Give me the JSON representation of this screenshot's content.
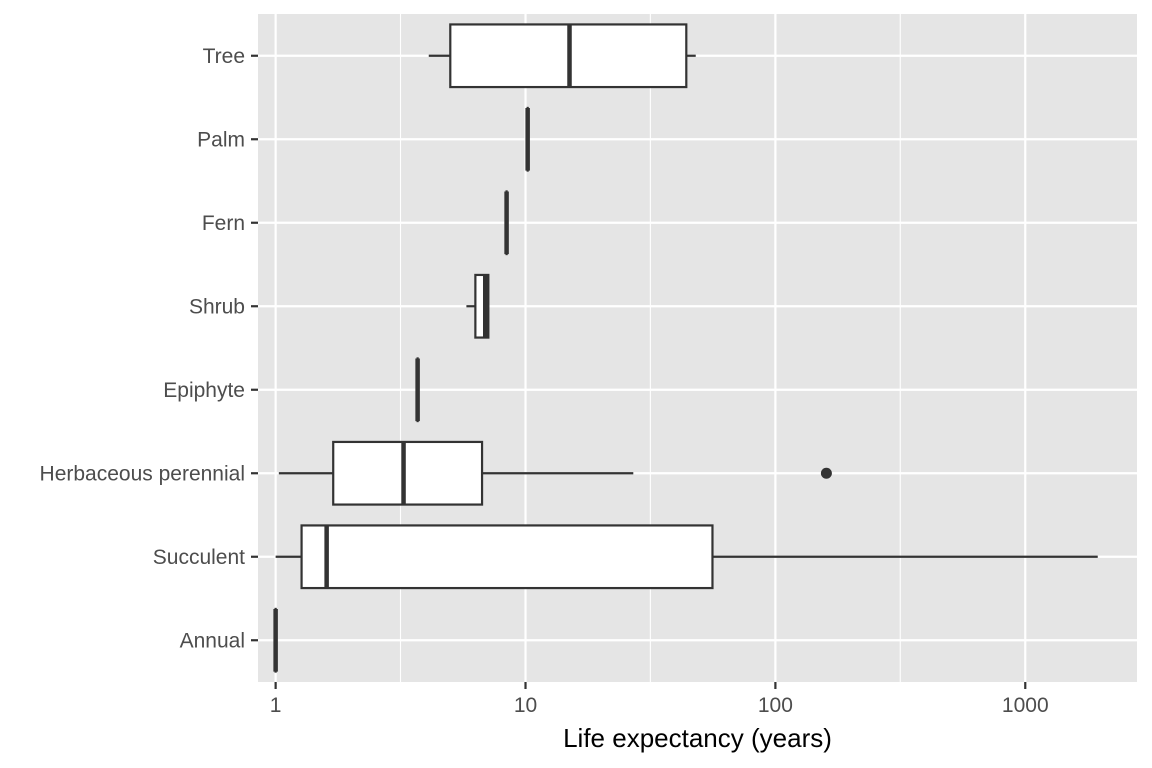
{
  "chart_data": {
    "type": "boxplot",
    "orientation": "horizontal",
    "xlabel": "Life expectancy (years)",
    "ylabel": "",
    "x_scale": "log10",
    "xlim": [
      0.85,
      2800
    ],
    "x_ticks": [
      {
        "value": 1,
        "label": "1"
      },
      {
        "value": 10,
        "label": "10"
      },
      {
        "value": 100,
        "label": "100"
      },
      {
        "value": 1000,
        "label": "1000"
      }
    ],
    "x_minor_gridlines": [
      3.16,
      31.6,
      316
    ],
    "categories": [
      "Tree",
      "Palm",
      "Fern",
      "Shrub",
      "Epiphyte",
      "Herbaceous perennial",
      "Succulent",
      "Annual"
    ],
    "boxes": [
      {
        "category": "Tree",
        "whisker_low": 4.1,
        "q1": 5.0,
        "median": 15.0,
        "q3": 44,
        "whisker_high": 48,
        "outliers": []
      },
      {
        "category": "Palm",
        "whisker_low": 10.2,
        "q1": 10.2,
        "median": 10.2,
        "q3": 10.2,
        "whisker_high": 10.2,
        "outliers": []
      },
      {
        "category": "Fern",
        "whisker_low": 8.4,
        "q1": 8.4,
        "median": 8.4,
        "q3": 8.4,
        "whisker_high": 8.4,
        "outliers": []
      },
      {
        "category": "Shrub",
        "whisker_low": 5.8,
        "q1": 6.3,
        "median": 6.9,
        "q3": 7.1,
        "whisker_high": 7.1,
        "outliers": []
      },
      {
        "category": "Epiphyte",
        "whisker_low": 3.7,
        "q1": 3.7,
        "median": 3.7,
        "q3": 3.7,
        "whisker_high": 3.7,
        "outliers": []
      },
      {
        "category": "Herbaceous perennial",
        "whisker_low": 1.03,
        "q1": 1.7,
        "median": 3.25,
        "q3": 6.7,
        "whisker_high": 27,
        "outliers": [
          160
        ]
      },
      {
        "category": "Succulent",
        "whisker_low": 1.0,
        "q1": 1.27,
        "median": 1.6,
        "q3": 56,
        "whisker_high": 1950,
        "outliers": []
      },
      {
        "category": "Annual",
        "whisker_low": 1.0,
        "q1": 1.0,
        "median": 1.0,
        "q3": 1.0,
        "whisker_high": 1.0,
        "outliers": []
      }
    ],
    "colors": {
      "panel_background": "#e5e5e5",
      "grid": "#ffffff",
      "box_fill": "#ffffff",
      "box_stroke": "#333333",
      "tick_text": "#4d4d4d",
      "axis_title": "#000000"
    },
    "grid": true,
    "legend": "none"
  }
}
